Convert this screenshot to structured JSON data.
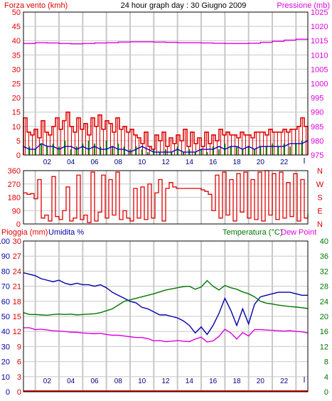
{
  "colors": {
    "wind": "#e00000",
    "gust_bars": "#008800",
    "wind_avg_line": "#0000cc",
    "pressure": "#dd00dd",
    "direction": "#e00000",
    "rain": "#e00000",
    "humidity": "#0000aa",
    "temperature": "#007700",
    "dew_point": "#dd00dd",
    "grid": "#c8c8c8",
    "frame": "#000000"
  },
  "chart_data": [
    {
      "type": "bar",
      "title": "24 hour graph day : 30 Giugno 2009",
      "left_label": "Forza vento (kmh)",
      "right_label": "Pressione (mb)",
      "x_ticks": [
        "02",
        "04",
        "06",
        "08",
        "10",
        "12",
        "14",
        "16",
        "18",
        "20",
        "22"
      ],
      "x_range_hours": [
        0,
        24
      ],
      "y_left_range": [
        0,
        50
      ],
      "y_left_ticks": [
        "0",
        "5",
        "10",
        "15",
        "20",
        "25",
        "30",
        "35",
        "40",
        "45",
        "50"
      ],
      "y_right_range": [
        975,
        1025
      ],
      "y_right_ticks": [
        "975",
        "980",
        "985",
        "990",
        "995",
        "1000",
        "1005",
        "1010",
        "1015",
        "1020",
        "1025"
      ],
      "grid": true,
      "series": [
        {
          "name": "",
          "kind": "bars",
          "axis": "left",
          "style": "gust",
          "x": [
            0.0,
            0.3,
            0.6,
            0.9,
            1.2,
            1.5,
            1.8,
            2.1,
            2.4,
            2.7,
            3.0,
            3.3,
            3.6,
            3.9,
            4.2,
            4.5,
            4.8,
            5.1,
            5.4,
            5.7,
            6.0,
            6.3,
            6.6,
            6.9,
            7.2,
            7.5,
            7.8,
            8.1,
            8.4,
            8.7,
            9.0,
            9.3,
            9.6,
            9.9,
            10.2,
            10.5,
            10.8,
            11.1,
            11.4,
            11.7,
            12.0,
            12.3,
            12.6,
            12.9,
            13.2,
            13.5,
            13.8,
            14.1,
            14.4,
            14.7,
            15.0,
            15.3,
            15.6,
            15.9,
            16.2,
            16.5,
            16.8,
            17.1,
            17.4,
            17.7,
            18.0,
            18.3,
            18.6,
            18.9,
            19.2,
            19.5,
            19.8,
            20.1,
            20.4,
            20.7,
            21.0,
            21.3,
            21.6,
            21.9,
            22.2,
            22.5,
            22.8,
            23.1,
            23.4,
            23.7
          ],
          "values": [
            13,
            8,
            7,
            9,
            6,
            12,
            8,
            7,
            10,
            13,
            9,
            12,
            15,
            10,
            8,
            13,
            9,
            11,
            7,
            13,
            10,
            14,
            9,
            12,
            11,
            8,
            13,
            9,
            10,
            8,
            9,
            7,
            6,
            4,
            8,
            3,
            2,
            7,
            5,
            8,
            3,
            6,
            4,
            7,
            5,
            9,
            3,
            8,
            4,
            6,
            3,
            8,
            4,
            7,
            5,
            9,
            7,
            8,
            7,
            7,
            6,
            8,
            7,
            7,
            6,
            8,
            8,
            8,
            7,
            9,
            8,
            8,
            8,
            9,
            8,
            9,
            9,
            10,
            13,
            10
          ]
        },
        {
          "name": "",
          "kind": "bars",
          "axis": "left",
          "style": "gust-accent",
          "x": [
            0.5,
            1.0,
            1.5,
            2.0,
            2.5,
            3.0,
            3.5,
            4.0,
            4.5,
            5.0,
            5.5,
            6.0,
            6.5,
            7.0,
            7.5,
            8.0,
            8.5,
            9.0,
            9.5,
            10.0,
            10.5,
            11.0,
            11.5,
            12.0,
            12.5,
            13.0,
            13.5,
            14.0,
            14.5,
            15.0,
            15.5,
            16.0,
            16.5,
            17.0,
            17.5,
            18.0,
            18.5,
            19.0,
            19.5,
            20.0,
            20.5,
            21.0,
            21.5,
            22.0,
            22.5,
            23.0,
            23.5
          ],
          "values": [
            3,
            2,
            4,
            3,
            4,
            3,
            5,
            2,
            3,
            4,
            5,
            4,
            3,
            5,
            3,
            4,
            3,
            2,
            3,
            2,
            1,
            2,
            1,
            2,
            1,
            3,
            1,
            2,
            1,
            2,
            1,
            3,
            2,
            4,
            3,
            3,
            2,
            3,
            2,
            3,
            3,
            4,
            3,
            4,
            3,
            4,
            5
          ]
        },
        {
          "name": "",
          "kind": "line",
          "axis": "left",
          "style": "avg",
          "x": [
            0,
            0.5,
            1,
            1.5,
            2,
            2.5,
            3,
            3.5,
            4,
            4.5,
            5,
            5.5,
            6,
            6.5,
            7,
            7.5,
            8,
            8.5,
            9,
            9.5,
            10,
            10.5,
            11,
            11.5,
            12,
            12.5,
            13,
            13.5,
            14,
            14.5,
            15,
            15.5,
            16,
            16.5,
            17,
            17.5,
            18,
            18.5,
            19,
            19.5,
            20,
            20.5,
            21,
            21.5,
            22,
            22.5,
            23,
            23.5,
            24
          ],
          "values": [
            3,
            2,
            2,
            4,
            3,
            3,
            2,
            3,
            3,
            2,
            3,
            2,
            3,
            2,
            2,
            3,
            2,
            2,
            1,
            2,
            3,
            2,
            1,
            1,
            1,
            1,
            2,
            1,
            1,
            1,
            2,
            2,
            2,
            3,
            2,
            3,
            3,
            2,
            3,
            2,
            3,
            3,
            3,
            3,
            3,
            4,
            4,
            4,
            5
          ]
        },
        {
          "name": "",
          "kind": "line",
          "axis": "right",
          "style": "pressure",
          "x": [
            0,
            1,
            2,
            3,
            4,
            5,
            6,
            7,
            8,
            9,
            10,
            11,
            12,
            13,
            14,
            15,
            16,
            17,
            18,
            19,
            20,
            21,
            22,
            23,
            24
          ],
          "values": [
            1014,
            1014.3,
            1014.2,
            1014,
            1013.9,
            1014,
            1014.2,
            1014.3,
            1014.5,
            1014.6,
            1014.6,
            1014.5,
            1014.4,
            1014.3,
            1014.3,
            1014.2,
            1014.1,
            1014,
            1014,
            1014.1,
            1014.4,
            1014.8,
            1015.2,
            1015.5,
            1015.3
          ]
        }
      ]
    },
    {
      "type": "line",
      "title": "",
      "x_ticks": [],
      "x_range_hours": [
        0,
        24
      ],
      "y_range": [
        0,
        360
      ],
      "y_left_ticks": [
        "0",
        "90",
        "180",
        "270",
        "360"
      ],
      "y_right_ticks": [
        "N",
        "E",
        "S",
        "W",
        "N"
      ],
      "grid": true,
      "series": [
        {
          "name": "",
          "style": "direction",
          "x": [
            0,
            0.3,
            0.6,
            0.9,
            1.2,
            1.5,
            1.8,
            2.1,
            2.4,
            2.7,
            3.0,
            3.3,
            3.6,
            3.9,
            4.2,
            4.5,
            4.8,
            5.1,
            5.4,
            5.7,
            6.0,
            6.3,
            6.6,
            6.9,
            7.2,
            7.5,
            7.8,
            8.1,
            8.4,
            8.7,
            9.0,
            9.3,
            9.6,
            9.9,
            10.2,
            10.5,
            10.8,
            11.1,
            11.4,
            11.7,
            12.0,
            12.3,
            12.6,
            12.9,
            13.2,
            13.5,
            13.8,
            14.1,
            14.4,
            14.7,
            15.0,
            15.3,
            15.6,
            15.9,
            16.2,
            16.5,
            16.8,
            17.1,
            17.4,
            17.7,
            18.0,
            18.3,
            18.6,
            18.9,
            19.2,
            19.5,
            19.8,
            20.1,
            20.4,
            20.7,
            21.0,
            21.3,
            21.6,
            21.9,
            22.2,
            22.5,
            22.8,
            23.1,
            23.4,
            23.7,
            24.0
          ],
          "values": [
            210,
            200,
            205,
            170,
            300,
            40,
            60,
            20,
            320,
            50,
            30,
            90,
            250,
            20,
            40,
            330,
            30,
            60,
            10,
            350,
            20,
            80,
            330,
            40,
            300,
            60,
            350,
            30,
            90,
            40,
            20,
            240,
            40,
            250,
            30,
            270,
            40,
            210,
            300,
            20,
            240,
            280,
            250,
            240,
            240,
            240,
            240,
            240,
            240,
            240,
            230,
            220,
            200,
            90,
            330,
            40,
            350,
            60,
            300,
            20,
            340,
            80,
            350,
            40,
            300,
            30,
            350,
            20,
            360,
            60,
            340,
            30,
            350,
            40,
            280,
            50,
            340,
            20,
            300,
            40,
            70
          ]
        }
      ]
    },
    {
      "type": "line",
      "title": "",
      "left_labels": [
        "Pioggia (mm)",
        "Umidita %"
      ],
      "right_labels": [
        "Temperatura (°C)",
        "Dew Point"
      ],
      "x_ticks": [
        "02",
        "04",
        "06",
        "08",
        "10",
        "12",
        "14",
        "16",
        "18",
        "20",
        "22"
      ],
      "x_range_hours": [
        0,
        24
      ],
      "rain_axis_ticks": [
        "0",
        "3",
        "6",
        "9",
        "12",
        "15",
        "18",
        "21",
        "24",
        "27",
        "30"
      ],
      "humidity_axis_ticks": [
        "0",
        "10",
        "20",
        "30",
        "40",
        "50",
        "60",
        "70",
        "80",
        "90",
        "100"
      ],
      "temperature_axis_ticks": [
        "0",
        "4",
        "8",
        "12",
        "16",
        "20",
        "24",
        "28",
        "32",
        "36",
        "40"
      ],
      "rain_range": [
        0,
        30
      ],
      "humidity_range": [
        0,
        100
      ],
      "temperature_range": [
        0,
        40
      ],
      "grid": true,
      "series": [
        {
          "name": "",
          "style": "humidity",
          "axis": "humidity",
          "x": [
            0,
            0.5,
            1,
            1.5,
            2,
            2.5,
            3,
            3.5,
            4,
            4.5,
            5,
            5.5,
            6,
            6.5,
            7,
            7.5,
            8,
            8.5,
            9,
            9.5,
            10,
            10.5,
            11,
            11.5,
            12,
            12.5,
            13,
            13.5,
            14,
            14.5,
            15,
            15.5,
            16,
            16.5,
            17,
            17.5,
            18,
            18.5,
            19,
            19.5,
            20,
            20.5,
            21,
            21.5,
            22,
            22.5,
            23,
            23.5,
            24
          ],
          "values": [
            79,
            78,
            77,
            75,
            74,
            73,
            74,
            72,
            71,
            72,
            71,
            71,
            70,
            71,
            69,
            66,
            64,
            62,
            60,
            59,
            56,
            55,
            53,
            51,
            51,
            50,
            49,
            47,
            44,
            39,
            43,
            38,
            44,
            52,
            62,
            54,
            44,
            55,
            45,
            58,
            63,
            64,
            65,
            66,
            66,
            66,
            65,
            64,
            64
          ]
        },
        {
          "name": "",
          "style": "temperature",
          "axis": "temperature",
          "x": [
            0,
            0.5,
            1,
            1.5,
            2,
            2.5,
            3,
            3.5,
            4,
            4.5,
            5,
            5.5,
            6,
            6.5,
            7,
            7.5,
            8,
            8.5,
            9,
            9.5,
            10,
            10.5,
            11,
            11.5,
            12,
            12.5,
            13,
            13.5,
            14,
            14.5,
            15,
            15.5,
            16,
            16.5,
            17,
            17.5,
            18,
            18.5,
            19,
            19.5,
            20,
            20.5,
            21,
            21.5,
            22,
            22.5,
            23,
            23.5,
            24
          ],
          "values": [
            21,
            20.5,
            20.5,
            20.4,
            20.3,
            20.5,
            20.6,
            20.5,
            20.6,
            20.4,
            20.5,
            20.6,
            20.7,
            21,
            21.5,
            22,
            23,
            24,
            24.4,
            24.8,
            25.2,
            25.6,
            26,
            26.5,
            27,
            27.3,
            27.6,
            27.9,
            28,
            27.2,
            27.8,
            29.5,
            28,
            27,
            28.2,
            27.6,
            27.2,
            26.5,
            26,
            25.2,
            24,
            23.5,
            23.3,
            23,
            22.8,
            22.6,
            22.5,
            22.3,
            22.1
          ]
        },
        {
          "name": "",
          "style": "dewpoint",
          "axis": "temperature",
          "x": [
            0,
            0.5,
            1,
            1.5,
            2,
            2.5,
            3,
            3.5,
            4,
            4.5,
            5,
            5.5,
            6,
            6.5,
            7,
            7.5,
            8,
            8.5,
            9,
            9.5,
            10,
            10.5,
            11,
            11.5,
            12,
            12.5,
            13,
            13.5,
            14,
            14.5,
            15,
            15.5,
            16,
            16.5,
            17,
            17.5,
            18,
            18.5,
            19,
            19.5,
            20,
            20.5,
            21,
            21.5,
            22,
            22.5,
            23,
            23.5,
            24
          ],
          "values": [
            17,
            17,
            16.5,
            16.6,
            16.4,
            16.2,
            16.1,
            16,
            15.8,
            15.8,
            15.6,
            15.5,
            15.4,
            15.5,
            15.2,
            15,
            15,
            14.8,
            14.6,
            14.4,
            14.4,
            14.1,
            13.5,
            13.6,
            13.3,
            13.4,
            13.6,
            13.4,
            13.3,
            14,
            14.5,
            13.2,
            13.5,
            14.7,
            16.6,
            15.6,
            14,
            15.7,
            14.8,
            16.5,
            16.5,
            16.4,
            16.3,
            16.2,
            16.1,
            16.2,
            16,
            15.9,
            15.6
          ]
        },
        {
          "name": "",
          "style": "rain",
          "axis": "rain",
          "x": [
            0,
            24
          ],
          "values": [
            0,
            0
          ]
        }
      ]
    }
  ]
}
